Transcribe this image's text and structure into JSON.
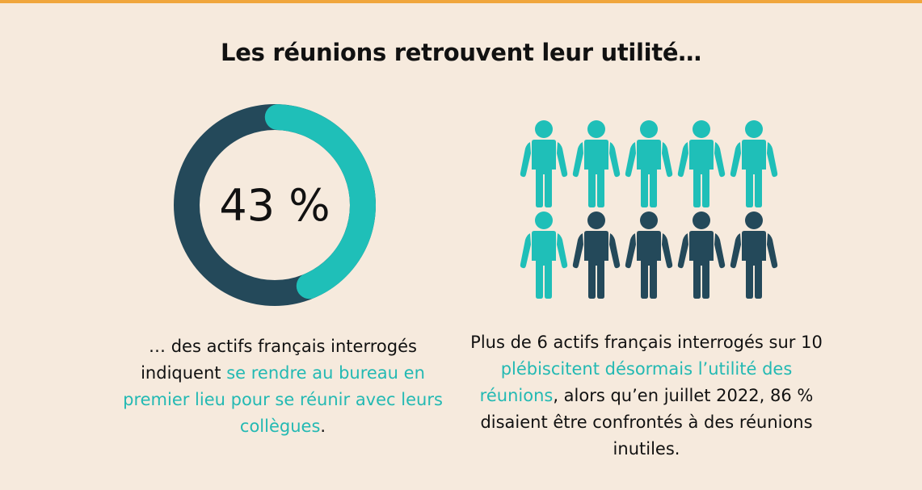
{
  "colors": {
    "accent_teal": "#1fbfb8",
    "dark_navy": "#24495a",
    "background": "#f6eadd",
    "top_bar": "#f0a63c"
  },
  "title": "Les réunions retrouvent leur utilité…",
  "left": {
    "value_percent": 43,
    "value_label": "43 %",
    "caption_part1": "… des actifs français interrogés indiquent ",
    "caption_highlight": "se rendre au bureau en premier lieu pour se réunir avec leurs collègues",
    "caption_part2": "."
  },
  "right": {
    "icon": "person-icon",
    "highlighted_count": 6,
    "total_count": 10,
    "caption_part1": "Plus de 6 actifs français interrogés sur 10 ",
    "caption_highlight": "plébiscitent désormais l’utilité des réunions",
    "caption_part2": ", alors qu’en juillet 2022, 86 % disaient être confrontés à des réunions inutiles."
  }
}
